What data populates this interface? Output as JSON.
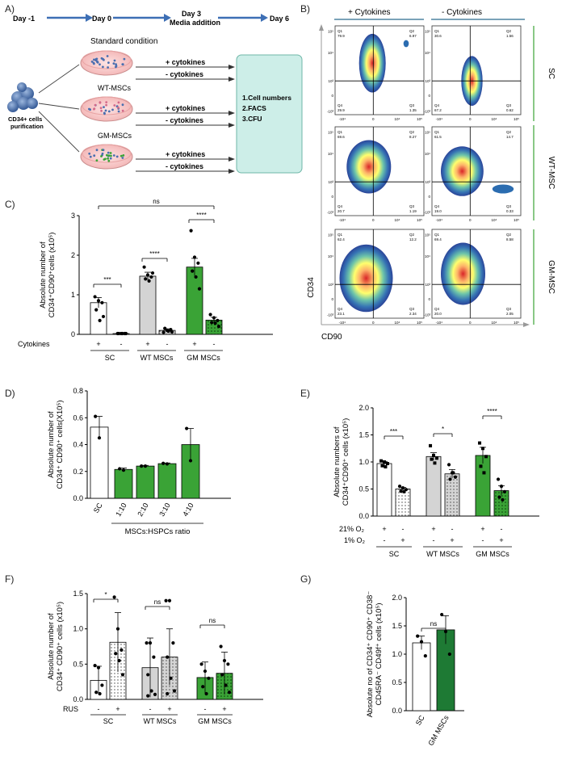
{
  "panel_labels": {
    "A": "A)",
    "B": "B)",
    "C": "C)",
    "D": "D)",
    "E": "E)",
    "F": "F)",
    "G": "G)"
  },
  "schematic": {
    "timeline": [
      "Day -1",
      "Day 0",
      "Day 3",
      "Media addition",
      "Day 6"
    ],
    "conditions": [
      "Standard condition",
      "WT-MSCs",
      "GM-MSCs"
    ],
    "plus_label": "+ cytokines",
    "minus_label": "- cytokines",
    "cells_label_1": "CD34+ cells",
    "cells_label_2": "purification",
    "readouts": [
      "1.Cell numbers",
      "2.FACS",
      "3.CFU"
    ]
  },
  "facs": {
    "col_headers": [
      "+ Cytokines",
      "- Cytokines"
    ],
    "row_labels": [
      "SC",
      "WT-MSC",
      "GM-MSC"
    ],
    "x_axis_label": "CD90",
    "y_axis_label": "CD34",
    "y_ticks": [
      "10⁵",
      "10⁴",
      "10³",
      "0",
      "-10³"
    ],
    "x_ticks": [
      "-10⁴",
      "0",
      "10⁴",
      "10⁵"
    ],
    "quadrant_names": [
      "Q1",
      "Q2",
      "Q4",
      "Q3"
    ],
    "quadrants": [
      [
        [
          "79.9",
          "6.97",
          "29.9",
          "1.35"
        ],
        [
          "30.6",
          "1.56",
          "67.2",
          "0.62"
        ]
      ],
      [
        [
          "69.6",
          "8.27",
          "20.7",
          "1.19"
        ],
        [
          "61.5",
          "14.7",
          "19.0",
          "0.33"
        ]
      ],
      [
        [
          "62.4",
          "12.2",
          "23.1",
          "2.34"
        ],
        [
          "69.4",
          "8.58",
          "20.0",
          "2.05"
        ]
      ]
    ]
  },
  "chart_data": [
    {
      "panel": "C",
      "type": "bar",
      "ylabel_line1": "Absolute number of",
      "ylabel_line2": "CD34⁺CD90⁺cells (x10⁵)",
      "ylim": [
        0,
        3
      ],
      "yticks": [
        "0",
        "1",
        "2",
        "3"
      ],
      "row_label": "Cytokines",
      "row_marks": [
        "+",
        "-",
        "+",
        "-",
        "+",
        "-"
      ],
      "groups": [
        "SC",
        "WT MSCs",
        "GM MSCs"
      ],
      "values": [
        0.8,
        0.02,
        1.47,
        0.1,
        1.7,
        0.36
      ],
      "errors": [
        0.13,
        0.01,
        0.1,
        0.04,
        0.22,
        0.07
      ],
      "points": [
        [
          0.95,
          0.85,
          0.8,
          0.62,
          0.35,
          0.45
        ],
        [
          0.02,
          0.02,
          0.02,
          0.02,
          0.02,
          0.02
        ],
        [
          1.7,
          1.5,
          1.45,
          1.4,
          1.35,
          1.55
        ],
        [
          0.05,
          0.1,
          0.12,
          0.15,
          0.08,
          0.06
        ],
        [
          2.62,
          1.95,
          1.8,
          1.6,
          1.45,
          1.15
        ],
        [
          0.5,
          0.42,
          0.35,
          0.3,
          0.28,
          0.2
        ]
      ],
      "colors": [
        "#ffffff",
        "#ffffff",
        "#d4d4d4",
        "#d4d4d4",
        "#3aa336",
        "#3aa336"
      ],
      "significance": [
        "***",
        "****",
        "****",
        "ns"
      ]
    },
    {
      "panel": "D",
      "type": "bar",
      "ylabel_line1": "Absolute number of",
      "ylabel_line2": "CD34⁺ CD90⁺ cells(X10⁵)",
      "ylim": [
        0,
        0.8
      ],
      "yticks": [
        "0.0",
        "0.2",
        "0.4",
        "0.6",
        "0.8"
      ],
      "categories": [
        "SC",
        "1:10",
        "2:10",
        "3:10",
        "4:10"
      ],
      "xlabel": "MSCs:HSPCs ratio",
      "values": [
        0.53,
        0.215,
        0.24,
        0.258,
        0.4
      ],
      "errors": [
        0.08,
        0.01,
        0.005,
        0.005,
        0.12
      ],
      "points": [
        [
          0.61,
          0.45
        ],
        [
          0.22,
          0.21
        ],
        [
          0.24,
          0.24
        ],
        [
          0.26,
          0.256
        ],
        [
          0.52,
          0.28
        ]
      ],
      "colors": [
        "#ffffff",
        "#3aa336",
        "#3aa336",
        "#3aa336",
        "#3aa336"
      ]
    },
    {
      "panel": "E",
      "type": "bar",
      "ylabel_line1": "Absolute numbers of",
      "ylabel_line2": "CD34⁺CD90⁺ cells (x10⁵)",
      "ylim": [
        0,
        2.0
      ],
      "yticks": [
        "0.0",
        "0.5",
        "1.0",
        "1.5",
        "2.0"
      ],
      "row_labels": [
        "21% O₂",
        "1% O₂"
      ],
      "row1_marks": [
        "+",
        "-",
        "+",
        "-",
        "+",
        "-"
      ],
      "row2_marks": [
        "-",
        "+",
        "-",
        "+",
        "-",
        "+"
      ],
      "groups": [
        "SC",
        "WT MSCs",
        "GM MSCs"
      ],
      "values": [
        0.97,
        0.5,
        1.1,
        0.78,
        1.12,
        0.47
      ],
      "errors": [
        0.04,
        0.03,
        0.07,
        0.08,
        0.15,
        0.09
      ],
      "points": [
        [
          1.02,
          1.0,
          0.97,
          0.93,
          0.91
        ],
        [
          0.55,
          0.52,
          0.49,
          0.46,
          0.45
        ],
        [
          1.3,
          1.12,
          1.07,
          1.05,
          0.98
        ],
        [
          0.95,
          0.8,
          0.72,
          0.68,
          0.8
        ],
        [
          1.35,
          1.25,
          1.1,
          0.92,
          0.8
        ],
        [
          0.68,
          0.55,
          0.45,
          0.35,
          0.3
        ]
      ],
      "colors": [
        "#ffffff",
        "#ffffff",
        "#d4d4d4",
        "#d4d4d4",
        "#3aa336",
        "#3aa336"
      ],
      "significance": [
        "***",
        "*",
        "****"
      ]
    },
    {
      "panel": "F",
      "type": "bar",
      "ylabel_line1": "Absolute number of",
      "ylabel_line2": "CD34⁺ CD90⁺ cells (x10⁵)",
      "ylim": [
        0,
        1.5
      ],
      "yticks": [
        "0.0",
        "0.5",
        "1.0",
        "1.5"
      ],
      "row_label": "RUS",
      "row_marks": [
        "-",
        "+",
        "-",
        "+",
        "-",
        "+"
      ],
      "groups": [
        "SC",
        "WT MSCs",
        "GM MSCs"
      ],
      "values": [
        0.27,
        0.81,
        0.45,
        0.6,
        0.31,
        0.37
      ],
      "errors": [
        0.2,
        0.42,
        0.42,
        0.4,
        0.22,
        0.3
      ],
      "points": [
        [
          0.48,
          0.45,
          0.2,
          0.1,
          0.08
        ],
        [
          1.45,
          1.0,
          0.7,
          0.65,
          0.55,
          0.35
        ],
        [
          0.8,
          0.8,
          0.6,
          0.35,
          0.12,
          0.07,
          0.05
        ],
        [
          1.4,
          1.4,
          0.8,
          0.6,
          0.3,
          0.12,
          0.08
        ],
        [
          0.5,
          0.4,
          0.3,
          0.18,
          0.08
        ],
        [
          0.75,
          0.55,
          0.5,
          0.35,
          0.2,
          0.1
        ]
      ],
      "colors": [
        "#ffffff",
        "#ffffff",
        "#d4d4d4",
        "#d4d4d4",
        "#3aa336",
        "#3aa336"
      ],
      "significance": [
        "*",
        "ns",
        "ns"
      ]
    },
    {
      "panel": "G",
      "type": "bar",
      "ylabel_line1": "Absolute no of CD34⁺ CD90⁺ CD38⁻",
      "ylabel_line2": "CD45RA⁻ CD49f⁺ cells (x10⁵)",
      "ylim": [
        0,
        2.0
      ],
      "yticks": [
        "0.0",
        "0.5",
        "1.0",
        "1.5",
        "2.0"
      ],
      "categories": [
        "SC",
        "GM MSCs"
      ],
      "values": [
        1.2,
        1.43
      ],
      "errors": [
        0.12,
        0.25
      ],
      "points": [
        [
          1.32,
          1.22,
          0.97
        ],
        [
          1.7,
          1.4,
          1.0
        ]
      ],
      "colors": [
        "#ffffff",
        "#1e7a34"
      ],
      "significance": [
        "ns"
      ]
    }
  ]
}
